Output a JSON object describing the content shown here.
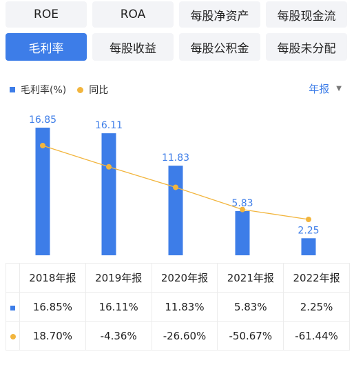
{
  "tabs": [
    [
      "ROE",
      "ROA",
      "每股净资产",
      "每股现金流"
    ],
    [
      "毛利率",
      "每股收益",
      "每股公积金",
      "每股未分配"
    ]
  ],
  "active_tab": "毛利率",
  "legend": {
    "bar": "毛利率(%)",
    "line": "同比"
  },
  "period_selector": "年报",
  "colors": {
    "bar": "#3d7de8",
    "line": "#f2b53d",
    "positive": "#e03a3a",
    "negative": "#26a65b"
  },
  "chart_data": {
    "type": "bar",
    "categories": [
      "2018年报",
      "2019年报",
      "2020年报",
      "2021年报",
      "2022年报"
    ],
    "series": [
      {
        "name": "毛利率(%)",
        "type": "bar",
        "values": [
          16.85,
          16.11,
          11.83,
          5.83,
          2.25
        ],
        "labels": [
          "16.85",
          "16.11",
          "11.83",
          "5.83",
          "2.25"
        ]
      },
      {
        "name": "同比",
        "type": "line",
        "values": [
          18.7,
          -4.36,
          -26.6,
          -50.67,
          -61.44
        ]
      }
    ]
  },
  "table": {
    "headers": [
      "2018年报",
      "2019年报",
      "2020年报",
      "2021年报",
      "2022年报"
    ],
    "rows": [
      {
        "marker": "bar",
        "cells": [
          "16.85%",
          "16.11%",
          "11.83%",
          "5.83%",
          "2.25%"
        ]
      },
      {
        "marker": "line",
        "cells": [
          "18.70%",
          "-4.36%",
          "-26.60%",
          "-50.67%",
          "-61.44%"
        ]
      }
    ]
  }
}
